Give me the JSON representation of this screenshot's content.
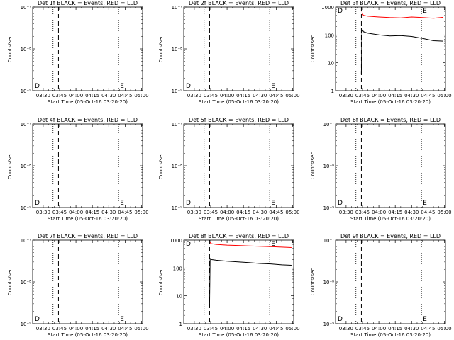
{
  "figure": {
    "x_tick_labels": [
      "03:30",
      "03:45",
      "04:00",
      "04:15",
      "04:30",
      "04:45",
      "05:00"
    ],
    "xlabel": "Start Time (05-Oct-16 03:20:20)",
    "ylabel": "Counts/sec",
    "marker_d": "D",
    "marker_e": "E"
  },
  "chart_data": [
    {
      "type": "line",
      "title": "Det 1f BLACK = Events, RED = LLD",
      "ylabel": "Counts/sec",
      "xlabel": "Start Time (05-Oct-16 03:20:20)",
      "x_axis": "time",
      "xlim": [
        "03:20:20",
        "05:01"
      ],
      "y_scale": "log",
      "ylim": [
        1e-09,
        1e-07
      ],
      "y_tick_labels": [
        "10⁻⁹",
        "10⁻⁸",
        "10⁻⁷"
      ],
      "dotted_vlines": [
        "03:39",
        "04:39"
      ],
      "dashed_vline": "03:44",
      "series": []
    },
    {
      "type": "line",
      "title": "Det 2f BLACK = Events, RED = LLD",
      "ylabel": "Counts/sec",
      "xlabel": "Start Time (05-Oct-16 03:20:20)",
      "x_axis": "time",
      "xlim": [
        "03:20:20",
        "05:01"
      ],
      "y_scale": "log",
      "ylim": [
        1e-09,
        1e-07
      ],
      "y_tick_labels": [
        "10⁻⁹",
        "10⁻⁸",
        "10⁻⁷"
      ],
      "dotted_vlines": [
        "03:39",
        "04:39"
      ],
      "dashed_vline": "03:44",
      "series": []
    },
    {
      "type": "line",
      "title": "Det 3f BLACK = Events, RED = LLD",
      "ylabel": "Counts/sec",
      "xlabel": "Start Time (05-Oct-16 03:20:20)",
      "x_axis": "time",
      "xlim": [
        "03:20:20",
        "05:01"
      ],
      "y_scale": "log",
      "ylim": [
        1,
        1000
      ],
      "y_tick_labels": [
        "1",
        "10",
        "100",
        "1000"
      ],
      "dotted_vlines": [
        "03:39",
        "04:39"
      ],
      "dashed_vline": "03:44",
      "series": [
        {
          "color": "#ff0000",
          "x": [
            "03:44:30",
            "03:45",
            "03:46",
            "03:50",
            "04:00",
            "04:10",
            "04:20",
            "04:30",
            "04:40",
            "04:50",
            "04:59"
          ],
          "y": [
            700,
            560,
            500,
            470,
            440,
            420,
            410,
            440,
            420,
            400,
            430
          ]
        },
        {
          "color": "#000000",
          "x": [
            "03:44:00",
            "03:44:30",
            "03:45",
            "03:46",
            "03:50",
            "04:00",
            "04:10",
            "04:20",
            "04:30",
            "04:40",
            "04:50",
            "04:59"
          ],
          "y": [
            4,
            160,
            150,
            130,
            115,
            100,
            92,
            95,
            88,
            75,
            62,
            60
          ]
        }
      ]
    },
    {
      "type": "line",
      "title": "Det 4f BLACK = Events, RED = LLD",
      "ylabel": "Counts/sec",
      "xlabel": "Start Time (05-Oct-16 03:20:20)",
      "x_axis": "time",
      "xlim": [
        "03:20:20",
        "05:01"
      ],
      "y_scale": "log",
      "ylim": [
        1e-09,
        1e-07
      ],
      "y_tick_labels": [
        "10⁻⁹",
        "10⁻⁸",
        "10⁻⁷"
      ],
      "dotted_vlines": [
        "03:39",
        "04:39"
      ],
      "dashed_vline": "03:44",
      "series": []
    },
    {
      "type": "line",
      "title": "Det 5f BLACK = Events, RED = LLD",
      "ylabel": "Counts/sec",
      "xlabel": "Start Time (05-Oct-16 03:20:20)",
      "x_axis": "time",
      "xlim": [
        "03:20:20",
        "05:01"
      ],
      "y_scale": "log",
      "ylim": [
        1e-09,
        1e-07
      ],
      "y_tick_labels": [
        "10⁻⁹",
        "10⁻⁸",
        "10⁻⁷"
      ],
      "dotted_vlines": [
        "03:39",
        "04:39"
      ],
      "dashed_vline": "03:44",
      "series": []
    },
    {
      "type": "line",
      "title": "Det 6f BLACK = Events, RED = LLD",
      "ylabel": "Counts/sec",
      "xlabel": "Start Time (05-Oct-16 03:20:20)",
      "x_axis": "time",
      "xlim": [
        "03:20:20",
        "05:01"
      ],
      "y_scale": "log",
      "ylim": [
        1e-09,
        1e-07
      ],
      "y_tick_labels": [
        "10⁻⁹",
        "10⁻⁸",
        "10⁻⁷"
      ],
      "dotted_vlines": [
        "03:39",
        "04:39"
      ],
      "dashed_vline": "03:44",
      "series": []
    },
    {
      "type": "line",
      "title": "Det 7f BLACK = Events, RED = LLD",
      "ylabel": "Counts/sec",
      "xlabel": "Start Time (05-Oct-16 03:20:20)",
      "x_axis": "time",
      "xlim": [
        "03:20:20",
        "05:01"
      ],
      "y_scale": "log",
      "ylim": [
        1e-09,
        1e-07
      ],
      "y_tick_labels": [
        "10⁻⁹",
        "10⁻⁸",
        "10⁻⁷"
      ],
      "dotted_vlines": [
        "03:39",
        "04:39"
      ],
      "dashed_vline": "03:44",
      "series": []
    },
    {
      "type": "line",
      "title": "Det 8f BLACK = Events, RED = LLD",
      "ylabel": "Counts/sec",
      "xlabel": "Start Time (05-Oct-16 03:20:20)",
      "x_axis": "time",
      "xlim": [
        "03:20:20",
        "05:01"
      ],
      "y_scale": "log",
      "ylim": [
        1,
        1000
      ],
      "y_tick_labels": [
        "1",
        "10",
        "100",
        "1000"
      ],
      "dotted_vlines": [
        "03:39",
        "04:39"
      ],
      "dashed_vline": "03:44",
      "series": [
        {
          "color": "#ff0000",
          "x": [
            "03:44:30",
            "03:45",
            "03:46",
            "03:50",
            "04:00",
            "04:10",
            "04:20",
            "04:30",
            "04:40",
            "04:50",
            "04:59"
          ],
          "y": [
            870,
            760,
            740,
            700,
            660,
            640,
            620,
            600,
            580,
            560,
            540
          ]
        },
        {
          "color": "#000000",
          "x": [
            "03:44:00",
            "03:44:30",
            "03:45",
            "03:46",
            "03:50",
            "04:00",
            "04:10",
            "04:20",
            "04:30",
            "04:40",
            "04:50",
            "04:59"
          ],
          "y": [
            4,
            220,
            210,
            200,
            190,
            175,
            165,
            155,
            145,
            140,
            130,
            125
          ]
        }
      ]
    },
    {
      "type": "line",
      "title": "Det 9f BLACK = Events, RED = LLD",
      "ylabel": "Counts/sec",
      "xlabel": "Start Time (05-Oct-16 03:20:20)",
      "x_axis": "time",
      "xlim": [
        "03:20:20",
        "05:01"
      ],
      "y_scale": "log",
      "ylim": [
        1e-09,
        1e-07
      ],
      "y_tick_labels": [
        "10⁻⁹",
        "10⁻⁸",
        "10⁻⁷"
      ],
      "dotted_vlines": [
        "03:39",
        "04:39"
      ],
      "dashed_vline": "03:44",
      "series": []
    }
  ]
}
